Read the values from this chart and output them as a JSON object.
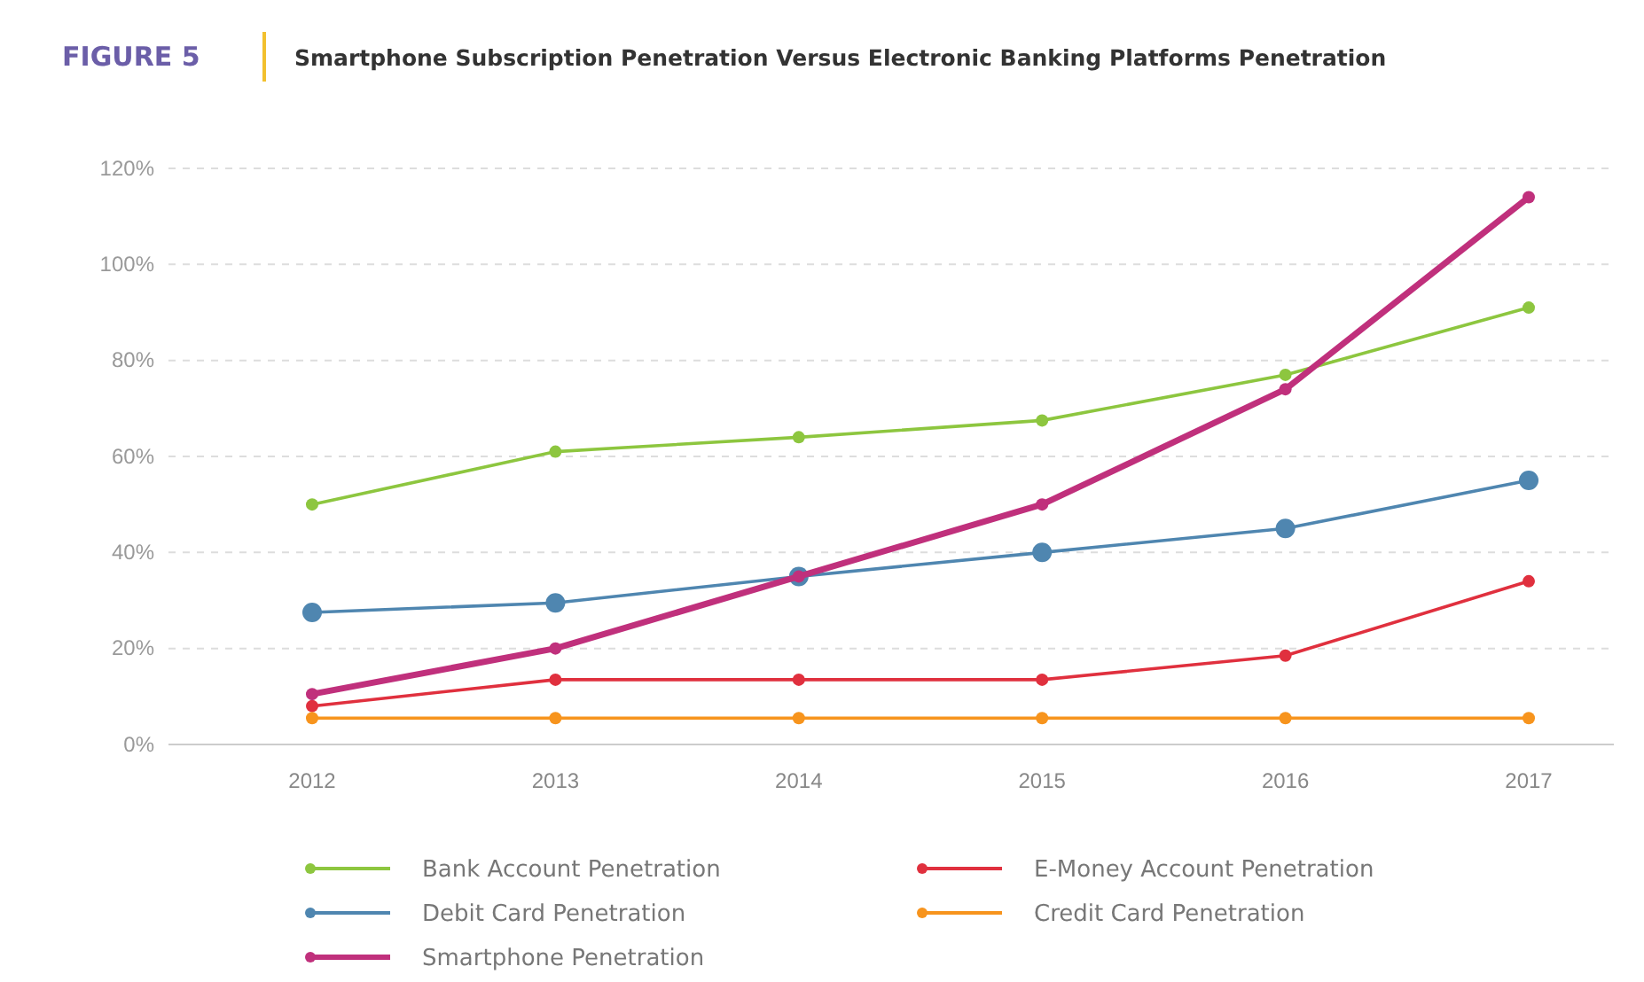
{
  "chart_data": {
    "type": "line",
    "title": "FIGURE 5",
    "subtitle": "Smartphone Subscription Penetration Versus Electronic Banking Platforms Penetration",
    "categories": [
      "2012",
      "2013",
      "2014",
      "2015",
      "2016",
      "2017"
    ],
    "series": [
      {
        "name": "Bank Account Penetration",
        "color": "#8dc63f",
        "values": [
          50,
          61,
          64,
          67.5,
          77,
          91
        ]
      },
      {
        "name": "Debit Card Penetration",
        "color": "#4f86b0",
        "values": [
          27.5,
          29.5,
          35,
          40,
          45,
          55
        ]
      },
      {
        "name": "Smartphone Penetration",
        "color": "#c0307c",
        "values": [
          10.5,
          20,
          35,
          50,
          74,
          114
        ]
      },
      {
        "name": "E-Money Account Penetration",
        "color": "#e0303e",
        "values": [
          8,
          13.5,
          13.5,
          13.5,
          18.5,
          34
        ]
      },
      {
        "name": "Credit Card Penetration",
        "color": "#f7941d",
        "values": [
          5.5,
          5.5,
          5.5,
          5.5,
          5.5,
          5.5
        ]
      }
    ],
    "ylim": [
      0,
      120
    ],
    "yticks": [
      {
        "value": 0,
        "label": "0%"
      },
      {
        "value": 20,
        "label": "20%"
      },
      {
        "value": 40,
        "label": "40%"
      },
      {
        "value": 60,
        "label": "60%"
      },
      {
        "value": 80,
        "label": "80%"
      },
      {
        "value": 100,
        "label": "100%"
      },
      {
        "value": 120,
        "label": "120%"
      }
    ],
    "grid": "y",
    "legend": "bottom",
    "marker": "circle",
    "line_style": "solid"
  }
}
